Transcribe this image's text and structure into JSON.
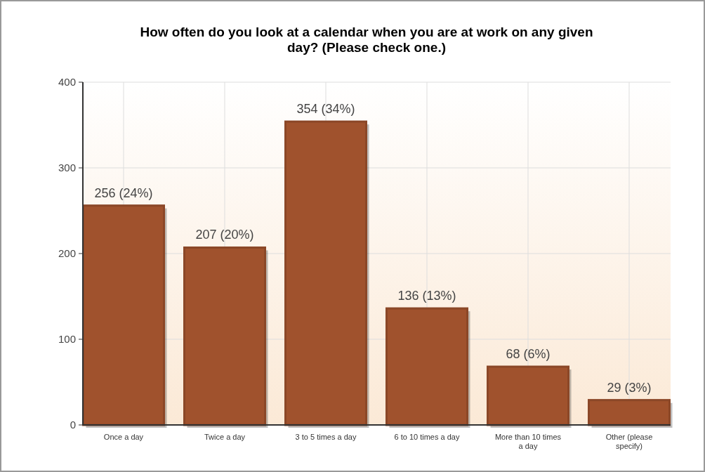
{
  "chart_data": {
    "type": "bar",
    "title": "How often do you look at a calendar when you are at work on any given day? (Please check one.)",
    "categories": [
      "Once a day",
      "Twice a day",
      "3 to 5 times a day",
      "6 to 10 times a day",
      "More than 10 times a day",
      "Other (please specify)"
    ],
    "values": [
      256,
      207,
      354,
      136,
      68,
      29
    ],
    "value_labels": [
      "256 (24%)",
      "207 (20%)",
      "354 (34%)",
      "136 (13%)",
      "68 (6%)",
      "29 (3%)"
    ],
    "color": "#a0522d",
    "ylim": [
      0,
      400
    ],
    "yticks": [
      0,
      100,
      200,
      300,
      400
    ],
    "grid": true
  }
}
